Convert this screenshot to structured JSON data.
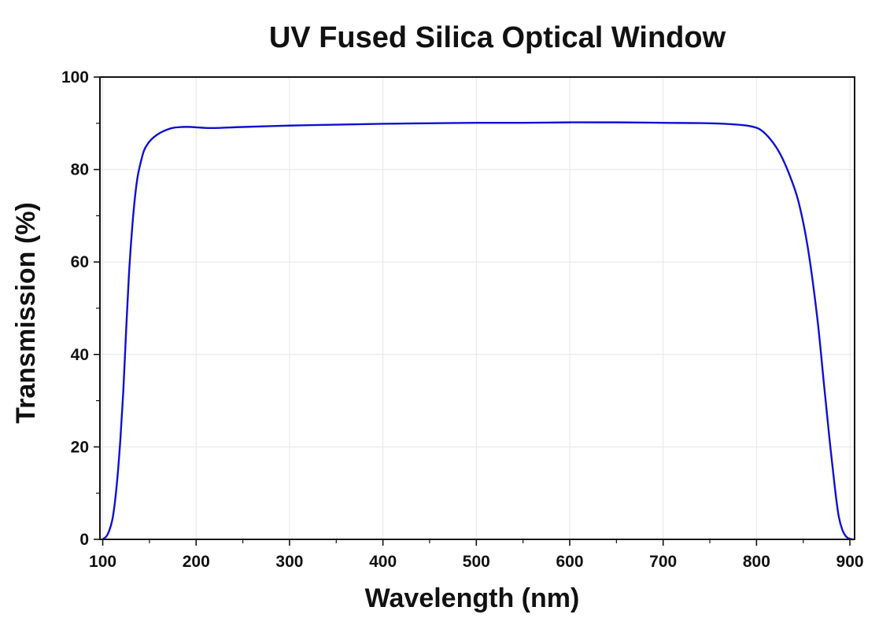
{
  "chart_data": {
    "type": "line",
    "title": "UV Fused Silica Optical Window",
    "xlabel": "Wavelength (nm)",
    "ylabel": "Transmission (%)",
    "xlim": [
      97,
      905
    ],
    "ylim": [
      0,
      100
    ],
    "x_ticks": [
      100,
      200,
      300,
      400,
      500,
      600,
      700,
      800,
      900
    ],
    "y_ticks": [
      0,
      20,
      40,
      60,
      80,
      100
    ],
    "x_minor_ticks": [
      150,
      250,
      350,
      450,
      550,
      650,
      750,
      850
    ],
    "y_minor_ticks": [
      10,
      30,
      50,
      70,
      90
    ],
    "grid": true,
    "legend": "none",
    "colors": {
      "line": "#1010d0",
      "grid": "#e6e6e6",
      "axis": "#111111"
    },
    "series": [
      {
        "x": [
          100,
          105,
          110,
          113,
          116,
          119,
          122,
          125,
          128,
          131,
          134,
          137,
          140,
          144,
          148,
          152,
          158,
          165,
          175,
          185,
          195,
          210,
          225,
          250,
          300,
          350,
          400,
          450,
          500,
          550,
          600,
          650,
          700,
          750,
          780,
          795,
          805,
          815,
          825,
          835,
          845,
          855,
          865,
          872,
          878,
          884,
          888,
          892,
          896,
          900,
          903
        ],
        "y": [
          0,
          1,
          4,
          8,
          14,
          22,
          32,
          45,
          57,
          66,
          73,
          78,
          81,
          84,
          85.5,
          86.5,
          87.5,
          88.3,
          89,
          89.2,
          89.2,
          89,
          89,
          89.2,
          89.5,
          89.7,
          89.9,
          90,
          90.1,
          90.1,
          90.2,
          90.2,
          90.1,
          90,
          89.7,
          89.3,
          88.5,
          86.5,
          83.5,
          79,
          73,
          63,
          48,
          34,
          22,
          11,
          5,
          2,
          0.6,
          0.1,
          0
        ]
      }
    ]
  }
}
